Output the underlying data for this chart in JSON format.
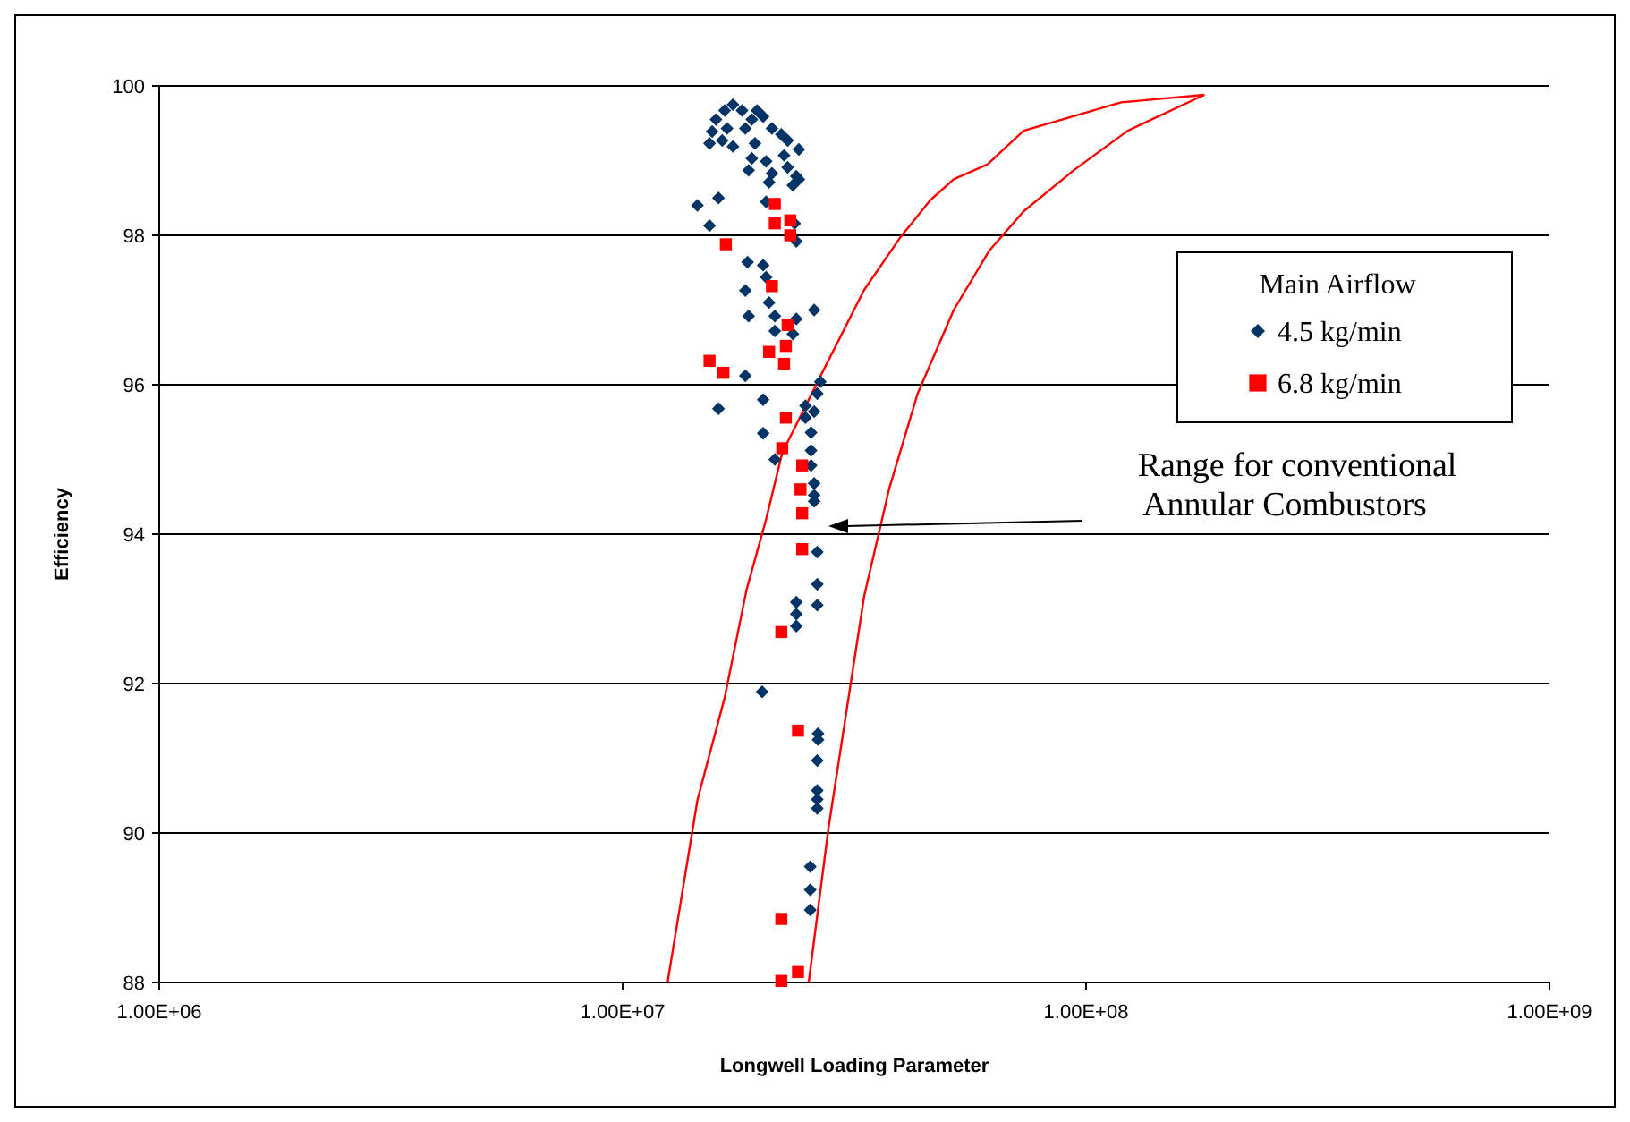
{
  "chart_data": {
    "type": "scatter",
    "xlabel": "Longwell Loading Parameter",
    "ylabel": "Efficiency",
    "legend_title": "Main Airflow",
    "legend": "right",
    "log": "x",
    "grid": "y",
    "xlim": [
      1000000,
      1000000000
    ],
    "xticks": [
      {
        "value": 1000000,
        "label": "1.00E+06"
      },
      {
        "value": 10000000,
        "label": "1.00E+07"
      },
      {
        "value": 100000000,
        "label": "1.00E+08"
      },
      {
        "value": 1000000000,
        "label": "1.00E+09"
      }
    ],
    "ylim": [
      88,
      100
    ],
    "yticks": [
      88,
      90,
      92,
      94,
      96,
      98,
      100
    ],
    "annotations": [
      "Range for conventional Annular Combustors"
    ],
    "series": [
      {
        "name": "4.5 kg/min",
        "marker": "diamond",
        "color": "#003366",
        "x": [
          17300000,
          16600000,
          18100000,
          19500000,
          15900000,
          19000000,
          20100000,
          15600000,
          16800000,
          18400000,
          21000000,
          22000000,
          15400000,
          17300000,
          19300000,
          22700000,
          24000000,
          16400000,
          19000000,
          20400000,
          22300000,
          18700000,
          21000000,
          22700000,
          23700000,
          20700000,
          23300000,
          24000000,
          14500000,
          16100000,
          15400000,
          20400000,
          23500000,
          23700000,
          18600000,
          20100000,
          20400000,
          18400000,
          20700000,
          25900000,
          18700000,
          21300000,
          23700000,
          21300000,
          23300000,
          18400000,
          26700000,
          26300000,
          16100000,
          20100000,
          24800000,
          25900000,
          24800000,
          20100000,
          25500000,
          25500000,
          21300000,
          25500000,
          25900000,
          25900000,
          25900000,
          26300000,
          26300000,
          26300000,
          23700000,
          23700000,
          23700000,
          20000000,
          26400000,
          26400000,
          26300000,
          26300000,
          26300000,
          26300000,
          25400000,
          25400000,
          25400000
        ],
        "values": [
          99.75,
          99.67,
          99.67,
          99.67,
          99.55,
          99.55,
          99.59,
          99.39,
          99.43,
          99.43,
          99.43,
          99.35,
          99.23,
          99.19,
          99.23,
          99.27,
          99.15,
          99.27,
          99.03,
          98.99,
          99.07,
          98.87,
          98.83,
          98.91,
          98.79,
          98.71,
          98.67,
          98.75,
          98.4,
          98.5,
          98.13,
          98.45,
          98.16,
          97.92,
          97.64,
          97.6,
          97.44,
          97.26,
          97.1,
          97.0,
          96.92,
          96.92,
          96.88,
          96.72,
          96.68,
          96.12,
          96.04,
          95.88,
          95.68,
          95.8,
          95.72,
          95.64,
          95.56,
          95.35,
          95.36,
          95.12,
          95.0,
          94.92,
          94.68,
          94.52,
          94.44,
          93.76,
          93.33,
          93.05,
          93.09,
          92.93,
          92.77,
          91.89,
          91.33,
          91.25,
          90.97,
          90.57,
          90.45,
          90.33,
          89.55,
          89.24,
          88.97
        ]
      },
      {
        "name": "6.8 kg/min",
        "marker": "square",
        "color": "#ff0000",
        "x": [
          21300000,
          21300000,
          23000000,
          23000000,
          16700000,
          21000000,
          22700000,
          20700000,
          22500000,
          22300000,
          15400000,
          16500000,
          22500000,
          22100000,
          24400000,
          24200000,
          24400000,
          24400000,
          22000000,
          23900000,
          22000000,
          23900000,
          22000000
        ],
        "values": [
          98.42,
          98.16,
          98.2,
          98.0,
          97.88,
          97.32,
          96.8,
          96.44,
          96.52,
          96.28,
          96.32,
          96.16,
          95.56,
          95.15,
          94.92,
          94.6,
          94.28,
          93.8,
          92.69,
          91.37,
          88.85,
          88.14,
          88.02
        ]
      },
      {
        "type": "line",
        "marker": "none",
        "color": "#ff0000",
        "x": [
          12500000,
          14500000,
          16600000,
          18500000,
          20400000,
          22100000,
          27100000,
          33200000,
          39600000,
          46100000,
          51800000,
          61300000,
          73300000,
          119000000,
          180000000
        ],
        "values": [
          88,
          90.44,
          91.81,
          93.25,
          94.2,
          95.09,
          96.19,
          97.27,
          97.96,
          98.47,
          98.75,
          98.95,
          99.4,
          99.78,
          99.88
        ]
      },
      {
        "type": "line",
        "marker": "none",
        "color": "#ff0000",
        "x": [
          25200000,
          27800000,
          33200000,
          37600000,
          43300000,
          51800000,
          61900000,
          73300000,
          94000000,
          123000000,
          180000000
        ],
        "values": [
          88,
          90.06,
          93.17,
          94.61,
          95.88,
          97.0,
          97.8,
          98.32,
          98.87,
          99.4,
          99.88
        ]
      }
    ]
  }
}
